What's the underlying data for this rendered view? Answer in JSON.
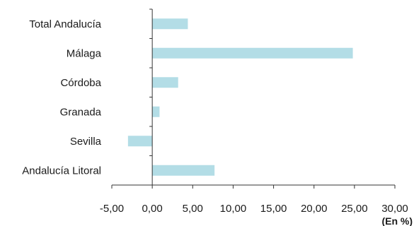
{
  "chart_data": {
    "type": "bar",
    "orientation": "horizontal",
    "categories": [
      "Total Andalucía",
      "Málaga",
      "Córdoba",
      "Granada",
      "Sevilla",
      "Andalucía Litoral"
    ],
    "values": [
      4.4,
      24.8,
      3.2,
      0.9,
      -3.0,
      7.7
    ],
    "x_ticks": [
      "-5,00",
      "0,00",
      "5,00",
      "10,00",
      "15,00",
      "20,00",
      "25,00",
      "30,00"
    ],
    "xlim": [
      -5,
      30
    ],
    "unit_label": "(En %)",
    "grid": false,
    "bar_color": "#b3dde6",
    "axis_color": "#333333"
  }
}
